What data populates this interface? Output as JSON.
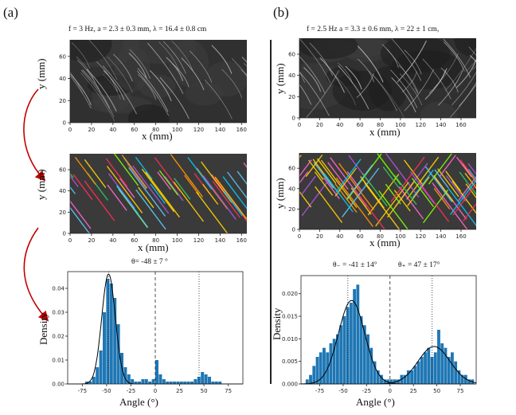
{
  "panel_a": {
    "label": "(a)",
    "params": "f = 3 Hz, a = 2.3 ± 0.3 mm, λ = 16.4 ± 0.8 cm",
    "raw_xlabel": "x (mm)",
    "raw_ylabel": "y (mm)",
    "trk_xlabel": "x (mm)",
    "trk_ylabel": "y (mm)",
    "x_ticks": [
      "0",
      "20",
      "40",
      "60",
      "80",
      "100",
      "120",
      "140",
      "160"
    ],
    "y_ticks": [
      "0",
      "20",
      "40",
      "60"
    ],
    "theta_label": "θ= -48 ± 7 °",
    "hist_xlabel": "Angle (°)",
    "hist_ylabel": "Density"
  },
  "panel_b": {
    "label": "(b)",
    "params": "f = 2.5 Hz  a = 3.3 ± 0.6 mm, λ = 22 ± 1 cm,",
    "raw_xlabel": "x (mm)",
    "raw_ylabel": "y (mm)",
    "trk_xlabel": "x (mm)",
    "trk_ylabel": "y (mm)",
    "x_ticks": [
      "0",
      "20",
      "40",
      "60",
      "80",
      "100",
      "120",
      "140",
      "160"
    ],
    "y_ticks": [
      "0",
      "20",
      "40",
      "60"
    ],
    "theta_minus_label": "θ₋ = -41 ± 14°",
    "theta_plus_label": "θ₊ = 47 ± 17°",
    "hist_xlabel": "Angle (°)",
    "hist_ylabel": "Density"
  },
  "chart_data": [
    {
      "type": "bar",
      "title": "θ= -48 ± 7 °",
      "xlabel": "Angle (°)",
      "ylabel": "Density",
      "xlim": [
        -90,
        90
      ],
      "ylim": [
        0,
        0.047
      ],
      "x_ticks": [
        -75,
        -50,
        -25,
        0,
        25,
        50,
        75
      ],
      "y_ticks": [
        0.0,
        0.01,
        0.02,
        0.03,
        0.04
      ],
      "bin_width": 3.6,
      "bin_starts": [
        -72,
        -68.4,
        -64.8,
        -61.2,
        -57.6,
        -54,
        -50.4,
        -46.8,
        -43.2,
        -39.6,
        -36,
        -32.4,
        -28.8,
        -25.2,
        -21.6,
        -18,
        -14.4,
        -10.8,
        -7.2,
        -3.6,
        0,
        3.6,
        7.2,
        10.8,
        14.4,
        18,
        21.6,
        25.2,
        28.8,
        32.4,
        36,
        39.6,
        43.2,
        46.8,
        50.4,
        54,
        57.6,
        61.2,
        64.8
      ],
      "values": [
        0.001,
        0.001,
        0.003,
        0.007,
        0.014,
        0.03,
        0.044,
        0.042,
        0.036,
        0.025,
        0.013,
        0.007,
        0.004,
        0.002,
        0.001,
        0.001,
        0.002,
        0.002,
        0.001,
        0.002,
        0.01,
        0.004,
        0.002,
        0.001,
        0.001,
        0.001,
        0.001,
        0.001,
        0.001,
        0.001,
        0.001,
        0.002,
        0.003,
        0.005,
        0.004,
        0.003,
        0.001,
        0.001,
        0.001
      ],
      "fit": {
        "kind": "gaussian",
        "mean": -48,
        "std": 7,
        "peak": 0.046
      },
      "reference_lines": [
        {
          "x": -48,
          "style": "dotted"
        },
        {
          "x": 0,
          "style": "dashed"
        },
        {
          "x": 45,
          "style": "dotted"
        }
      ]
    },
    {
      "type": "bar",
      "title": "θ₋ = -41 ± 14°  θ₊ = 47 ± 17°",
      "xlabel": "Angle (°)",
      "ylabel": "Density",
      "xlim": [
        -95,
        92
      ],
      "ylim": [
        0,
        0.024
      ],
      "x_ticks": [
        -75,
        -50,
        -25,
        0,
        25,
        50,
        75
      ],
      "y_ticks": [
        0.0,
        0.005,
        0.01,
        0.015,
        0.02
      ],
      "bin_width": 3.6,
      "bin_starts": [
        -90,
        -86.4,
        -82.8,
        -79.2,
        -75.6,
        -72,
        -68.4,
        -64.8,
        -61.2,
        -57.6,
        -54,
        -50.4,
        -46.8,
        -43.2,
        -39.6,
        -36,
        -32.4,
        -28.8,
        -25.2,
        -21.6,
        -18,
        -14.4,
        -10.8,
        -7.2,
        -3.6,
        0,
        3.6,
        7.2,
        10.8,
        14.4,
        18,
        21.6,
        25.2,
        28.8,
        32.4,
        36,
        39.6,
        43.2,
        46.8,
        50.4,
        54,
        57.6,
        61.2,
        64.8,
        68.4,
        72,
        75.6,
        79.2,
        82.8,
        86.4
      ],
      "values": [
        0.001,
        0.002,
        0.004,
        0.006,
        0.007,
        0.008,
        0.007,
        0.009,
        0.01,
        0.011,
        0.013,
        0.015,
        0.017,
        0.018,
        0.021,
        0.022,
        0.015,
        0.013,
        0.011,
        0.008,
        0.005,
        0.003,
        0.002,
        0.001,
        0.001,
        0.001,
        0.001,
        0.001,
        0.002,
        0.002,
        0.003,
        0.003,
        0.004,
        0.005,
        0.006,
        0.007,
        0.008,
        0.006,
        0.007,
        0.012,
        0.009,
        0.008,
        0.006,
        0.007,
        0.005,
        0.003,
        0.002,
        0.002,
        0.001,
        0.001
      ],
      "fits": [
        {
          "kind": "gaussian",
          "mean": -41,
          "std": 14,
          "peak": 0.0185
        },
        {
          "kind": "gaussian",
          "mean": 47,
          "std": 17,
          "peak": 0.0083
        }
      ],
      "reference_lines": [
        {
          "x": -45,
          "style": "dotted"
        },
        {
          "x": 0,
          "style": "dashed"
        },
        {
          "x": 45,
          "style": "dotted"
        }
      ]
    }
  ]
}
